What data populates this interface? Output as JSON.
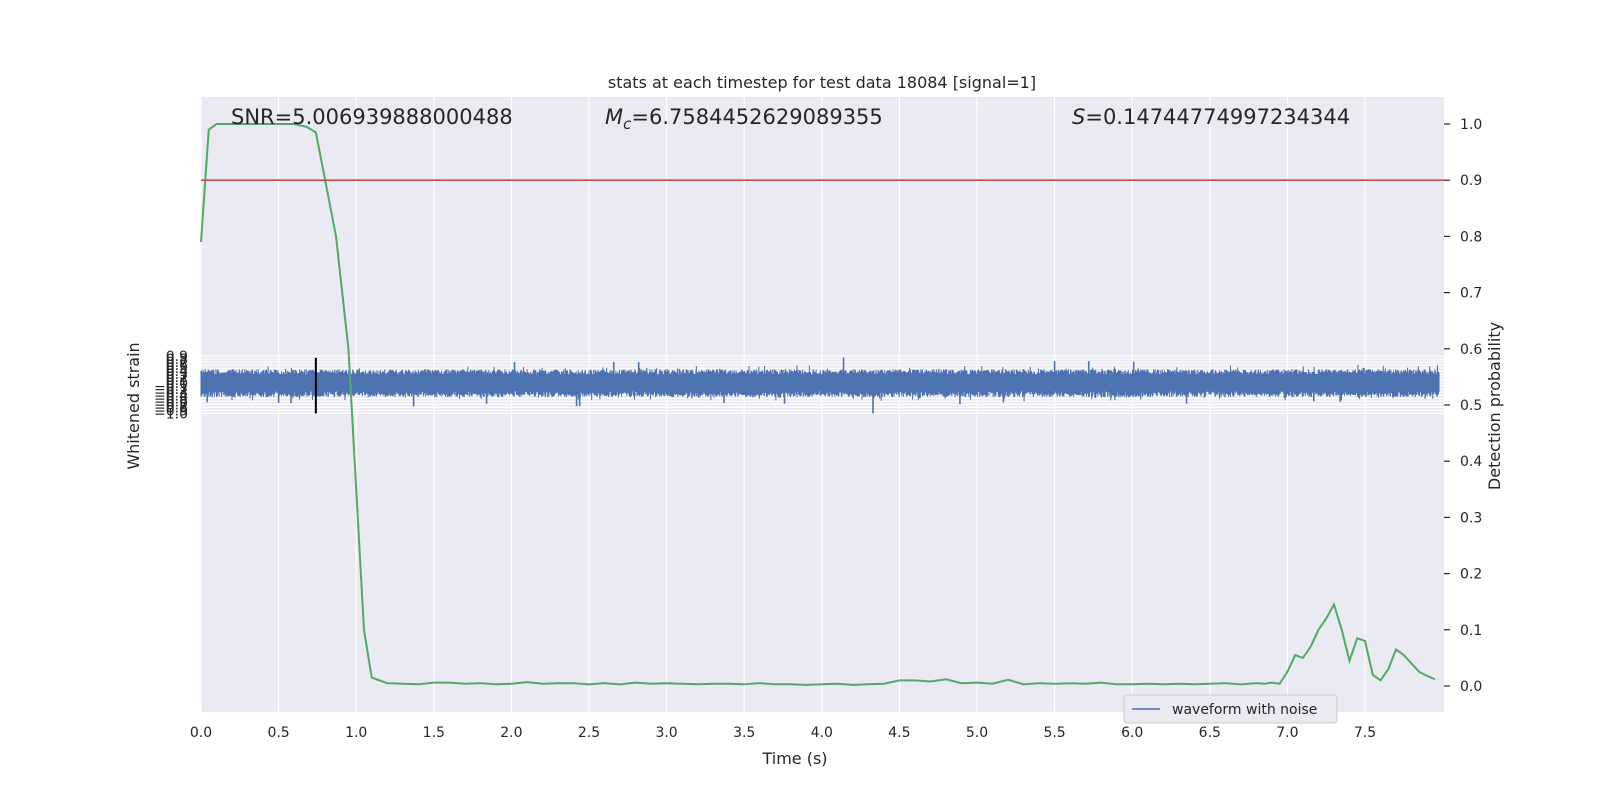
{
  "chart_data": {
    "type": "line",
    "title": "stats at each timestep for test data 18084 [signal=1]",
    "xlabel": "Time (s)",
    "ylabel": "Whitened strain",
    "y2label": "Detection probability",
    "xlim": [
      0.0,
      8.0
    ],
    "ylim": [
      -1.09,
      0.95
    ],
    "y2lim": [
      -0.05,
      1.05
    ],
    "xticks": [
      "0.0",
      "0.5",
      "1.0",
      "1.5",
      "2.0",
      "2.5",
      "3.0",
      "3.5",
      "4.0",
      "4.5",
      "5.0",
      "5.5",
      "6.0",
      "6.5",
      "7.0",
      "7.5"
    ],
    "yticks": [
      "0.9",
      "0.8",
      "0.7",
      "0.6",
      "0.5",
      "0.4",
      "0.3",
      "0.2",
      "0.1",
      "0.0",
      "-0.1",
      "-0.2",
      "-0.3",
      "-0.4",
      "-0.5",
      "-0.6",
      "-0.7",
      "-0.8",
      "-0.9",
      "-1.0"
    ],
    "y2ticks": [
      "1.0",
      "0.9",
      "0.8",
      "0.7",
      "0.6",
      "0.5",
      "0.4",
      "0.3",
      "0.2",
      "0.1",
      "0.0"
    ],
    "annotations": {
      "snr": "SNR=5.006939888000488",
      "mc_symbol": "M",
      "mc_sub": "c",
      "mc_value": "=6.7584452629089355",
      "s_symbol": "S",
      "s_value": "=0.14744774997234344"
    },
    "legend": {
      "label": "waveform with noise",
      "location": "lower-right"
    },
    "threshold": {
      "value": 0.9,
      "axis": "y2",
      "color": "#c44e52"
    },
    "vline": {
      "x": 0.74,
      "ymin": -1.0,
      "ymax": 0.84,
      "color": "#000000"
    },
    "waveform": {
      "name": "waveform with noise",
      "color": "#4c72b0",
      "noise_envelope": {
        "upper_typical": 0.4,
        "lower_typical": -0.4,
        "max": 0.85,
        "min": -1.0
      },
      "spikes": [
        {
          "x": 0.04,
          "y": -0.63
        },
        {
          "x": 0.5,
          "y": -0.65
        },
        {
          "x": 0.58,
          "y": -0.66
        },
        {
          "x": 1.37,
          "y": -0.77
        },
        {
          "x": 1.84,
          "y": -0.68
        },
        {
          "x": 2.02,
          "y": 0.7
        },
        {
          "x": 2.42,
          "y": -0.76
        },
        {
          "x": 2.44,
          "y": -0.76
        },
        {
          "x": 2.66,
          "y": 0.7
        },
        {
          "x": 2.82,
          "y": 0.7
        },
        {
          "x": 3.37,
          "y": -0.65
        },
        {
          "x": 3.76,
          "y": -0.68
        },
        {
          "x": 4.14,
          "y": 0.85
        },
        {
          "x": 4.33,
          "y": -1.0
        },
        {
          "x": 4.89,
          "y": -0.7
        },
        {
          "x": 5.17,
          "y": -0.64
        },
        {
          "x": 5.5,
          "y": 0.73
        },
        {
          "x": 5.72,
          "y": 0.73
        },
        {
          "x": 6.01,
          "y": 0.71
        },
        {
          "x": 6.35,
          "y": -0.68
        },
        {
          "x": 7.17,
          "y": -0.6
        },
        {
          "x": 7.34,
          "y": -0.62
        }
      ]
    },
    "probability": {
      "name": "detection probability",
      "color": "#55a868",
      "x": [
        0.0,
        0.05,
        0.1,
        0.15,
        0.2,
        0.3,
        0.4,
        0.5,
        0.6,
        0.68,
        0.74,
        0.8,
        0.87,
        0.95,
        1.0,
        1.05,
        1.1,
        1.2,
        1.3,
        1.4,
        1.5,
        1.6,
        1.7,
        1.8,
        1.9,
        2.0,
        2.1,
        2.2,
        2.3,
        2.4,
        2.5,
        2.6,
        2.7,
        2.8,
        2.9,
        3.0,
        3.1,
        3.2,
        3.3,
        3.4,
        3.5,
        3.6,
        3.7,
        3.8,
        3.9,
        4.0,
        4.1,
        4.2,
        4.3,
        4.4,
        4.5,
        4.6,
        4.7,
        4.8,
        4.9,
        5.0,
        5.1,
        5.2,
        5.3,
        5.4,
        5.5,
        5.6,
        5.7,
        5.8,
        5.9,
        6.0,
        6.1,
        6.2,
        6.3,
        6.4,
        6.5,
        6.6,
        6.7,
        6.8,
        6.85,
        6.9,
        6.95,
        7.0,
        7.05,
        7.1,
        7.15,
        7.2,
        7.25,
        7.3,
        7.35,
        7.4,
        7.45,
        7.5,
        7.55,
        7.6,
        7.65,
        7.7,
        7.75,
        7.8,
        7.85,
        7.9,
        7.95
      ],
      "y": [
        0.79,
        0.99,
        1.0,
        1.0,
        1.0,
        1.0,
        1.0,
        1.0,
        1.0,
        0.995,
        0.985,
        0.9,
        0.8,
        0.6,
        0.35,
        0.1,
        0.015,
        0.005,
        0.004,
        0.003,
        0.006,
        0.006,
        0.004,
        0.005,
        0.003,
        0.004,
        0.007,
        0.004,
        0.005,
        0.005,
        0.003,
        0.005,
        0.003,
        0.006,
        0.004,
        0.005,
        0.004,
        0.003,
        0.004,
        0.004,
        0.003,
        0.005,
        0.003,
        0.003,
        0.002,
        0.003,
        0.004,
        0.002,
        0.003,
        0.004,
        0.01,
        0.01,
        0.008,
        0.012,
        0.005,
        0.006,
        0.004,
        0.011,
        0.003,
        0.005,
        0.004,
        0.005,
        0.004,
        0.006,
        0.003,
        0.003,
        0.004,
        0.003,
        0.004,
        0.003,
        0.004,
        0.005,
        0.003,
        0.005,
        0.004,
        0.006,
        0.004,
        0.025,
        0.055,
        0.05,
        0.07,
        0.1,
        0.12,
        0.145,
        0.1,
        0.045,
        0.085,
        0.08,
        0.02,
        0.01,
        0.03,
        0.065,
        0.055,
        0.04,
        0.025,
        0.018,
        0.012
      ]
    },
    "colors": {
      "plot_bg": "#eaeaf2",
      "grid": "#ffffff",
      "text": "#262626"
    },
    "grid": true
  }
}
